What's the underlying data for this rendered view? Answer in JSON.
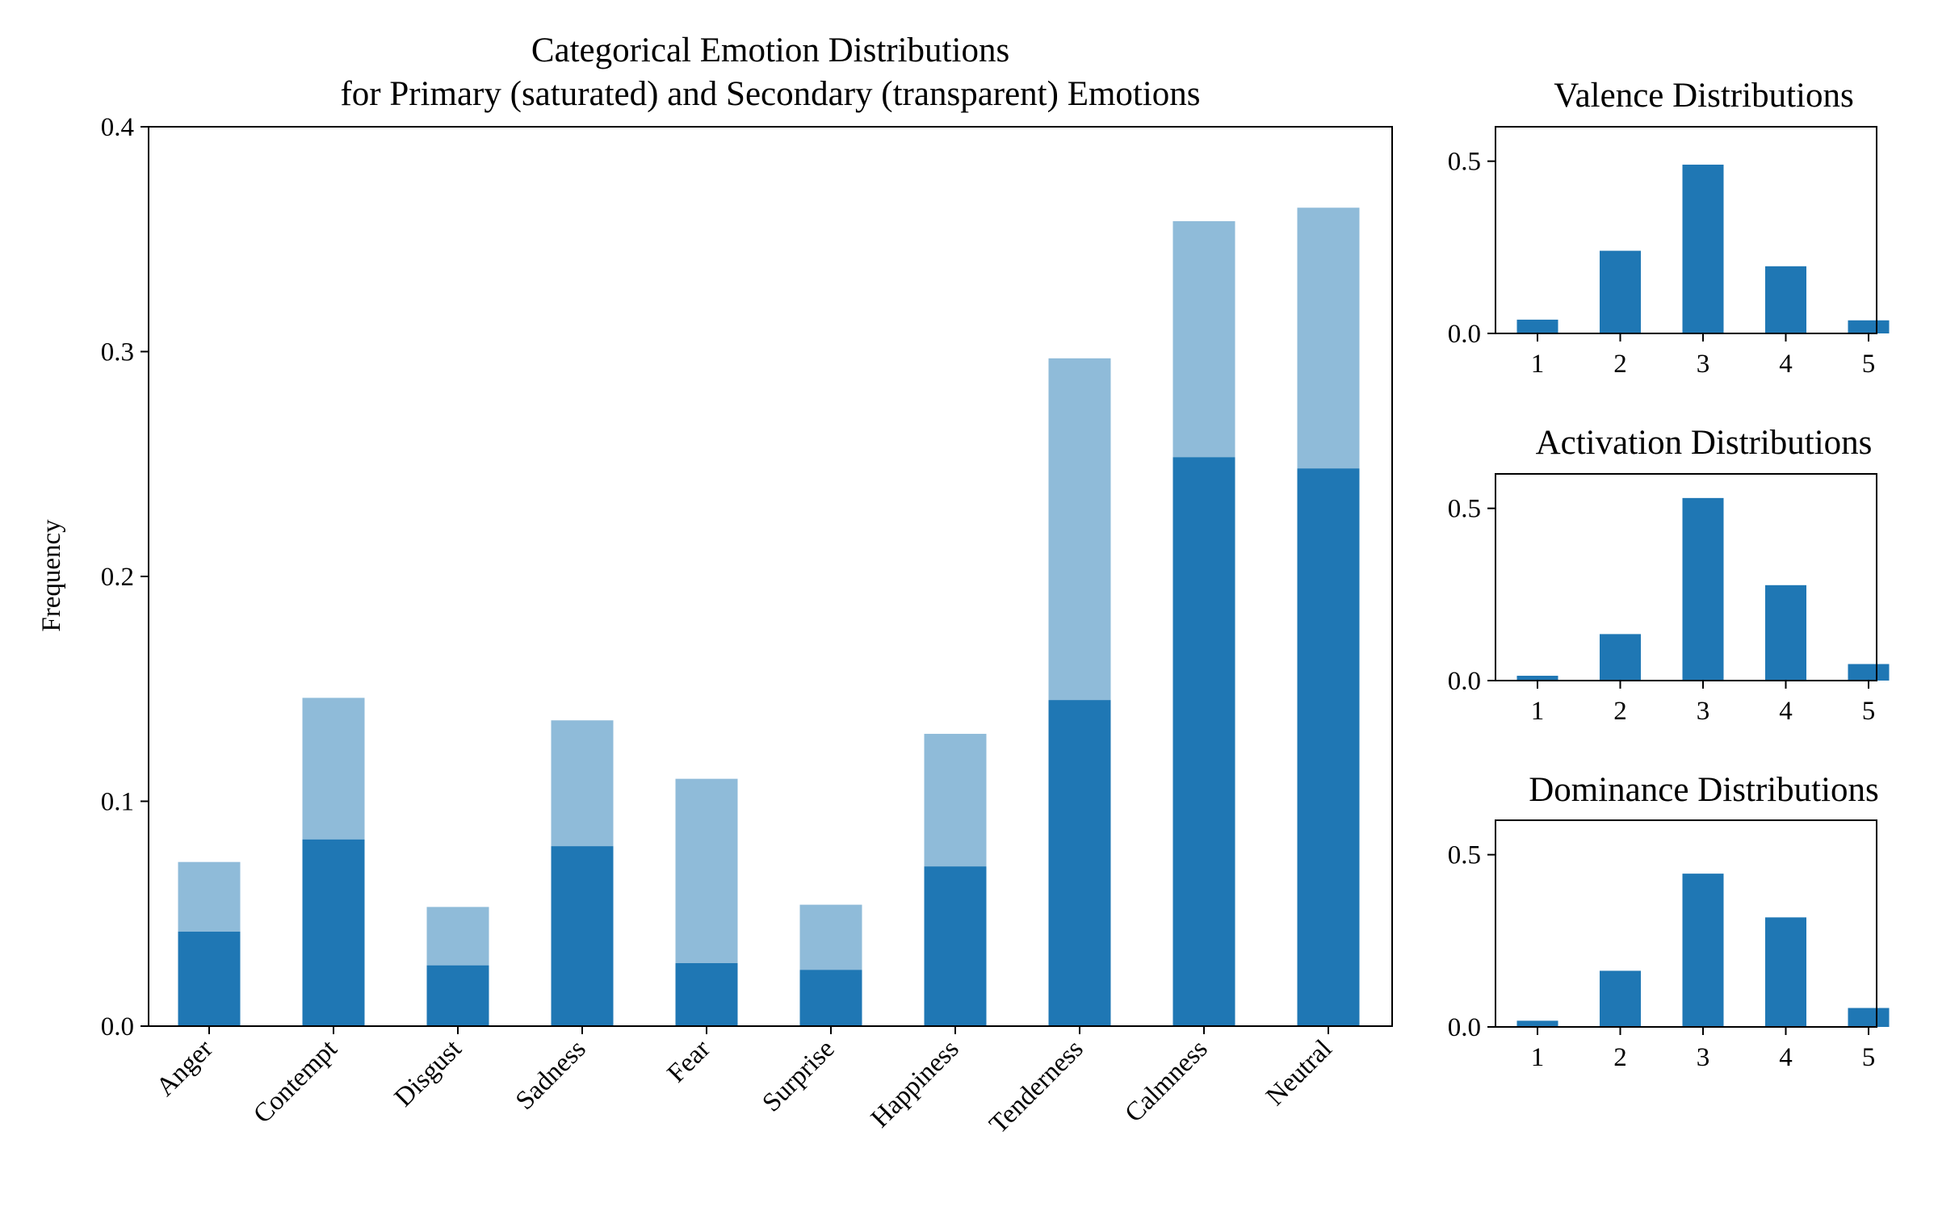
{
  "chart_data": [
    {
      "type": "bar",
      "title": "Categorical Emotion Distributions",
      "subtitle": "for Primary (saturated) and Secondary (transparent) Emotions",
      "xlabel": "",
      "ylabel": "Frequency",
      "ylim": [
        0,
        0.4
      ],
      "yticks": [
        "0.0",
        "0.1",
        "0.2",
        "0.3",
        "0.4"
      ],
      "grid": false,
      "categories": [
        "Anger",
        "Contempt",
        "Disgust",
        "Sadness",
        "Fear",
        "Surprise",
        "Happiness",
        "Tenderness",
        "Calmness",
        "Neutral"
      ],
      "series": [
        {
          "values": [
            0.042,
            0.083,
            0.027,
            0.08,
            0.028,
            0.025,
            0.071,
            0.145,
            0.253,
            0.248
          ],
          "color": "#1f77b4",
          "opacity": 1.0
        },
        {
          "values": [
            0.073,
            0.146,
            0.053,
            0.136,
            0.11,
            0.054,
            0.13,
            0.297,
            0.358,
            0.364
          ],
          "color": "#1f77b4",
          "opacity": 0.5
        }
      ]
    },
    {
      "type": "bar",
      "title": "Valence Distributions",
      "xlabel": "",
      "ylabel": "",
      "ylim": [
        0,
        0.6
      ],
      "yticks": [
        "0.0",
        "0.5"
      ],
      "grid": false,
      "categories": [
        "1",
        "2",
        "3",
        "4",
        "5"
      ],
      "values": [
        0.04,
        0.24,
        0.49,
        0.195,
        0.038
      ],
      "color": "#1f77b4"
    },
    {
      "type": "bar",
      "title": "Activation Distributions",
      "xlabel": "",
      "ylabel": "",
      "ylim": [
        0,
        0.6
      ],
      "yticks": [
        "0.0",
        "0.5"
      ],
      "grid": false,
      "categories": [
        "1",
        "2",
        "3",
        "4",
        "5"
      ],
      "values": [
        0.014,
        0.135,
        0.53,
        0.277,
        0.048
      ],
      "color": "#1f77b4"
    },
    {
      "type": "bar",
      "title": "Dominance Distributions",
      "xlabel": "",
      "ylabel": "",
      "ylim": [
        0,
        0.6
      ],
      "yticks": [
        "0.0",
        "0.5"
      ],
      "grid": false,
      "categories": [
        "1",
        "2",
        "3",
        "4",
        "5"
      ],
      "values": [
        0.018,
        0.163,
        0.445,
        0.318,
        0.055
      ],
      "color": "#1f77b4"
    }
  ]
}
